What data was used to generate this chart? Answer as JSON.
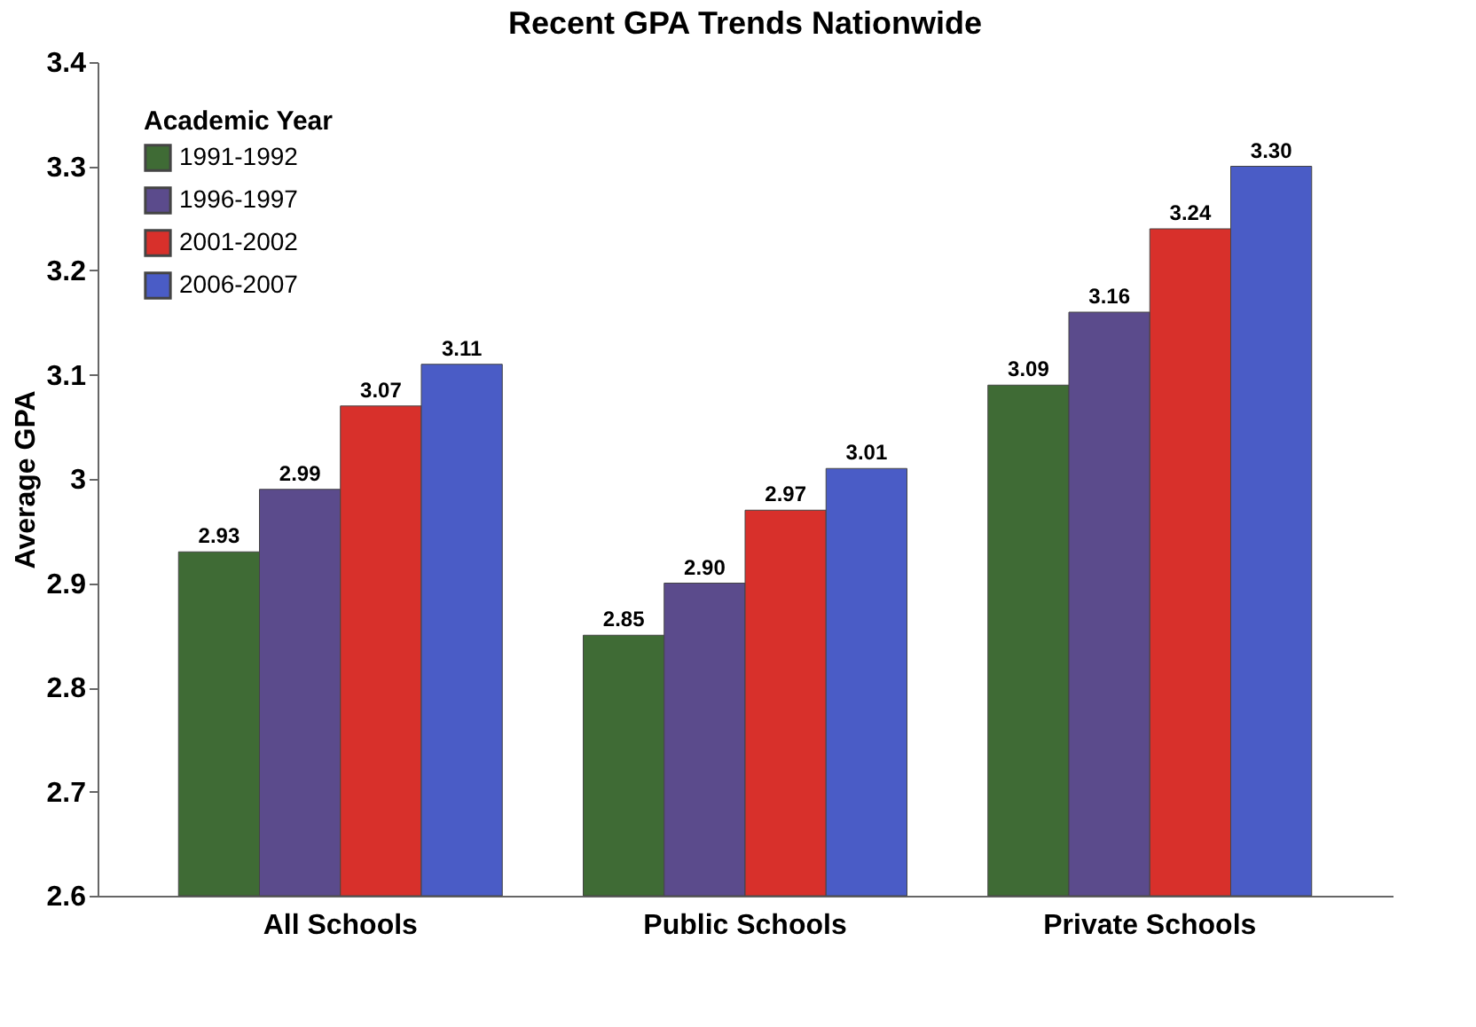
{
  "chart_data": {
    "type": "bar",
    "title": "Recent GPA Trends Nationwide",
    "ylabel": "Average GPA",
    "legend_title": "Academic Year",
    "categories": [
      "All Schools",
      "Public Schools",
      "Private Schools"
    ],
    "series": [
      {
        "name": "1991-1992",
        "color": "#3f6b35",
        "values": [
          2.93,
          2.85,
          3.09
        ],
        "value_labels": [
          "2.93",
          "2.85",
          "3.09"
        ]
      },
      {
        "name": "1996-1997",
        "color": "#5b4b8c",
        "values": [
          2.99,
          2.9,
          3.16
        ],
        "value_labels": [
          "2.99",
          "2.90",
          "3.16"
        ]
      },
      {
        "name": "2001-2002",
        "color": "#d8302b",
        "values": [
          3.07,
          2.97,
          3.24
        ],
        "value_labels": [
          "3.07",
          "2.97",
          "3.24"
        ]
      },
      {
        "name": "2006-2007",
        "color": "#4a5cc6",
        "values": [
          3.11,
          3.01,
          3.3
        ],
        "value_labels": [
          "3.11",
          "3.01",
          "3.30"
        ]
      }
    ],
    "ylim": [
      2.6,
      3.4
    ],
    "yticks": [
      2.6,
      2.7,
      2.8,
      2.9,
      3,
      3.1,
      3.2,
      3.3,
      3.4
    ],
    "grid": false,
    "legend": "top left"
  }
}
